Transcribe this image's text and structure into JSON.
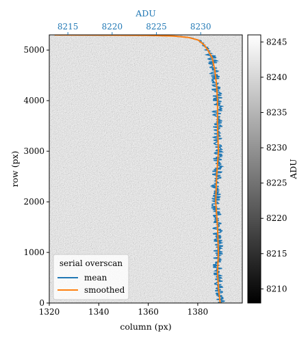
{
  "chart_data": {
    "type": "heatmap",
    "title": "",
    "image": {
      "xlabel": "column (px)",
      "ylabel": "row (px)",
      "xlim": [
        1320,
        1398
      ],
      "ylim": [
        0,
        5300
      ],
      "xticks": [
        1320,
        1340,
        1360,
        1380
      ],
      "yticks": [
        0,
        1000,
        2000,
        3000,
        4000,
        5000
      ],
      "colormap": "gray",
      "noise_range": [
        8220,
        8232
      ]
    },
    "top_axis": {
      "label": "ADU",
      "ticks": [
        8215,
        8220,
        8225,
        8230
      ],
      "color": "#1f77b4",
      "range": [
        8212.9,
        8234.7
      ]
    },
    "colorbar": {
      "label": "ADU",
      "range": [
        8208,
        8246
      ],
      "ticks": [
        8210,
        8215,
        8220,
        8225,
        8230,
        8235,
        8240,
        8245
      ]
    },
    "legend": {
      "title": "serial overscan",
      "placement": "lower-left",
      "entries": [
        {
          "name": "mean",
          "color": "#1f77b4"
        },
        {
          "name": "smoothed",
          "color": "#ff7f0e"
        }
      ]
    },
    "series": [
      {
        "name": "smoothed",
        "color": "#ff7f0e",
        "x_unit": "ADU",
        "y_unit": "row (px)",
        "points": [
          [
            8232.2,
            0
          ],
          [
            8232.0,
            300
          ],
          [
            8231.9,
            600
          ],
          [
            8232.0,
            1000
          ],
          [
            8231.9,
            1500
          ],
          [
            8231.7,
            2000
          ],
          [
            8231.8,
            2500
          ],
          [
            8232.0,
            3000
          ],
          [
            8231.9,
            3500
          ],
          [
            8231.9,
            4000
          ],
          [
            8231.8,
            4300
          ],
          [
            8231.6,
            4600
          ],
          [
            8231.3,
            4850
          ],
          [
            8230.8,
            5000
          ],
          [
            8230.4,
            5100
          ],
          [
            8229.7,
            5200
          ],
          [
            8228.6,
            5250
          ],
          [
            8227.0,
            5275
          ],
          [
            8224.0,
            5290
          ],
          [
            8219.0,
            5295
          ],
          [
            8213.5,
            5298
          ]
        ]
      }
    ]
  }
}
